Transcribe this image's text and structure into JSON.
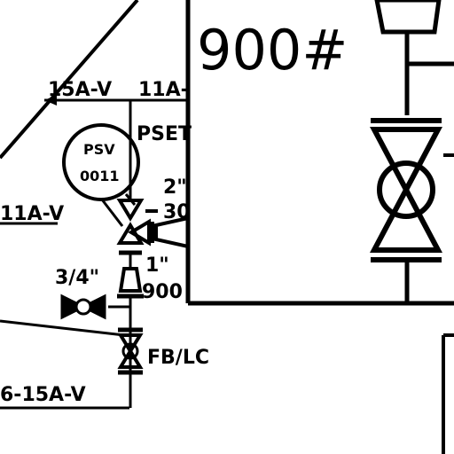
{
  "diagram": {
    "rating_label": "900#",
    "line_label_top_left": "15A-V",
    "line_label_top_right": "11A-",
    "line_label_left": "11A-V",
    "line_label_bottom": "6-15A-V",
    "setpoint_label": "PSET",
    "psv_tag_line1": "PSV",
    "psv_tag_line2": "0011",
    "size_2in": "2\"",
    "size_30": "30",
    "size_1in": "1\"",
    "rating_small": "900",
    "size_3_4in": "3/4\"",
    "valve_mode": "FB/LC"
  }
}
